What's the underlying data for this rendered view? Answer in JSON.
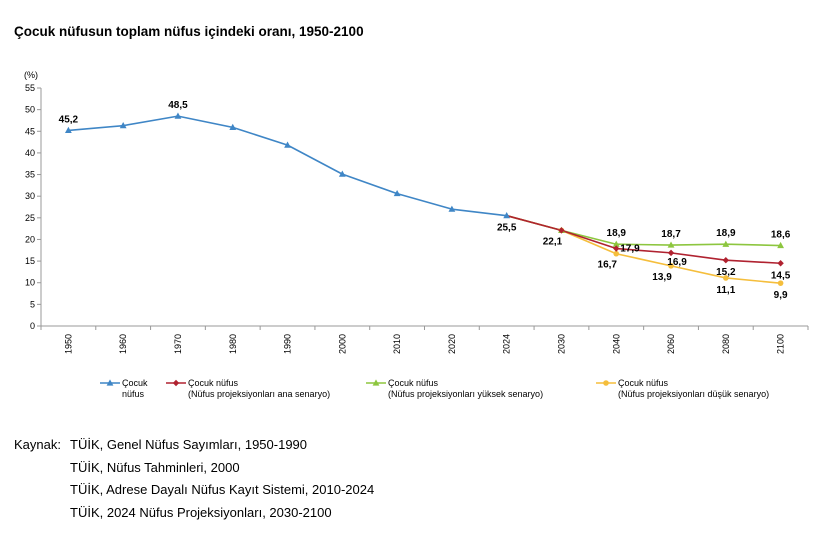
{
  "title": "Çocuk nüfusun toplam nüfus içindeki oranı, 1950-2100",
  "chart_data": {
    "type": "line",
    "ylabel": "(%)",
    "ylim": [
      0,
      55
    ],
    "yticks": [
      "0",
      "5",
      "10",
      "15",
      "20",
      "25",
      "30",
      "35",
      "40",
      "45",
      "50",
      "55"
    ],
    "categories": [
      "1950",
      "1960",
      "1970",
      "1980",
      "1990",
      "2000",
      "2010",
      "2020",
      "2024",
      "2030",
      "2040",
      "2060",
      "2080",
      "2100"
    ],
    "series": [
      {
        "name": "Çocuk nüfus",
        "legend": [
          "Çocuk",
          "nüfus"
        ],
        "color": "#3f86c6",
        "marker": "triangle",
        "values": [
          45.2,
          46.3,
          48.5,
          45.9,
          41.8,
          35.1,
          30.6,
          27.0,
          25.5,
          null,
          null,
          null,
          null,
          null
        ]
      },
      {
        "name": "Çocuk nüfus (Nüfus projeksiyonları ana senaryo)",
        "legend": [
          "Çocuk nüfus",
          "(Nüfus projeksiyonları ana senaryo)"
        ],
        "color": "#b02230",
        "marker": "diamond",
        "values": [
          null,
          null,
          null,
          null,
          null,
          null,
          null,
          null,
          25.5,
          22.1,
          17.9,
          16.9,
          15.2,
          14.5
        ]
      },
      {
        "name": "Çocuk nüfus (Nüfus projeksiyonları yüksek senaryo)",
        "legend": [
          "Çocuk nüfus",
          "(Nüfus projeksiyonları yüksek senaryo)"
        ],
        "color": "#8dc63f",
        "marker": "triangle",
        "values": [
          null,
          null,
          null,
          null,
          null,
          null,
          null,
          null,
          25.5,
          22.1,
          18.9,
          18.7,
          18.9,
          18.6
        ]
      },
      {
        "name": "Çocuk nüfus (Nüfus projeksiyonları düşük senaryo)",
        "legend": [
          "Çocuk nüfus",
          "(Nüfus projeksiyonları düşük senaryo)"
        ],
        "color": "#f5be3c",
        "marker": "circle",
        "values": [
          null,
          null,
          null,
          null,
          null,
          null,
          null,
          null,
          25.5,
          22.1,
          16.7,
          13.9,
          11.1,
          9.9
        ]
      }
    ],
    "data_labels": [
      {
        "text": "45,2",
        "series": 0,
        "index": 0,
        "pos": "above"
      },
      {
        "text": "48,5",
        "series": 0,
        "index": 2,
        "pos": "above"
      },
      {
        "text": "25,5",
        "series": 0,
        "index": 8,
        "pos": "below"
      },
      {
        "text": "22,1",
        "series": 1,
        "index": 9,
        "pos": "below-left"
      },
      {
        "text": "18,9",
        "series": 2,
        "index": 10,
        "pos": "above"
      },
      {
        "text": "18,7",
        "series": 2,
        "index": 11,
        "pos": "above"
      },
      {
        "text": "18,9",
        "series": 2,
        "index": 12,
        "pos": "above"
      },
      {
        "text": "18,6",
        "series": 2,
        "index": 13,
        "pos": "above"
      },
      {
        "text": "17,9",
        "series": 1,
        "index": 10,
        "pos": "right"
      },
      {
        "text": "16,9",
        "series": 1,
        "index": 11,
        "pos": "right-up"
      },
      {
        "text": "15,2",
        "series": 1,
        "index": 12,
        "pos": "below"
      },
      {
        "text": "14,5",
        "series": 1,
        "index": 13,
        "pos": "below"
      },
      {
        "text": "16,7",
        "series": 3,
        "index": 10,
        "pos": "below-left"
      },
      {
        "text": "13,9",
        "series": 3,
        "index": 11,
        "pos": "below-left"
      },
      {
        "text": "11,1",
        "series": 3,
        "index": 12,
        "pos": "below"
      },
      {
        "text": "9,9",
        "series": 3,
        "index": 13,
        "pos": "below"
      }
    ],
    "grid": false,
    "legend_position": "bottom"
  },
  "source": {
    "lead": "Kaynak:",
    "lines": [
      "TÜİK, Genel Nüfus Sayımları, 1950-1990",
      "TÜİK, Nüfus Tahminleri, 2000",
      "TÜİK, Adrese Dayalı Nüfus Kayıt Sistemi, 2010-2024",
      "TÜİK, 2024 Nüfus Projeksiyonları, 2030-2100"
    ]
  }
}
